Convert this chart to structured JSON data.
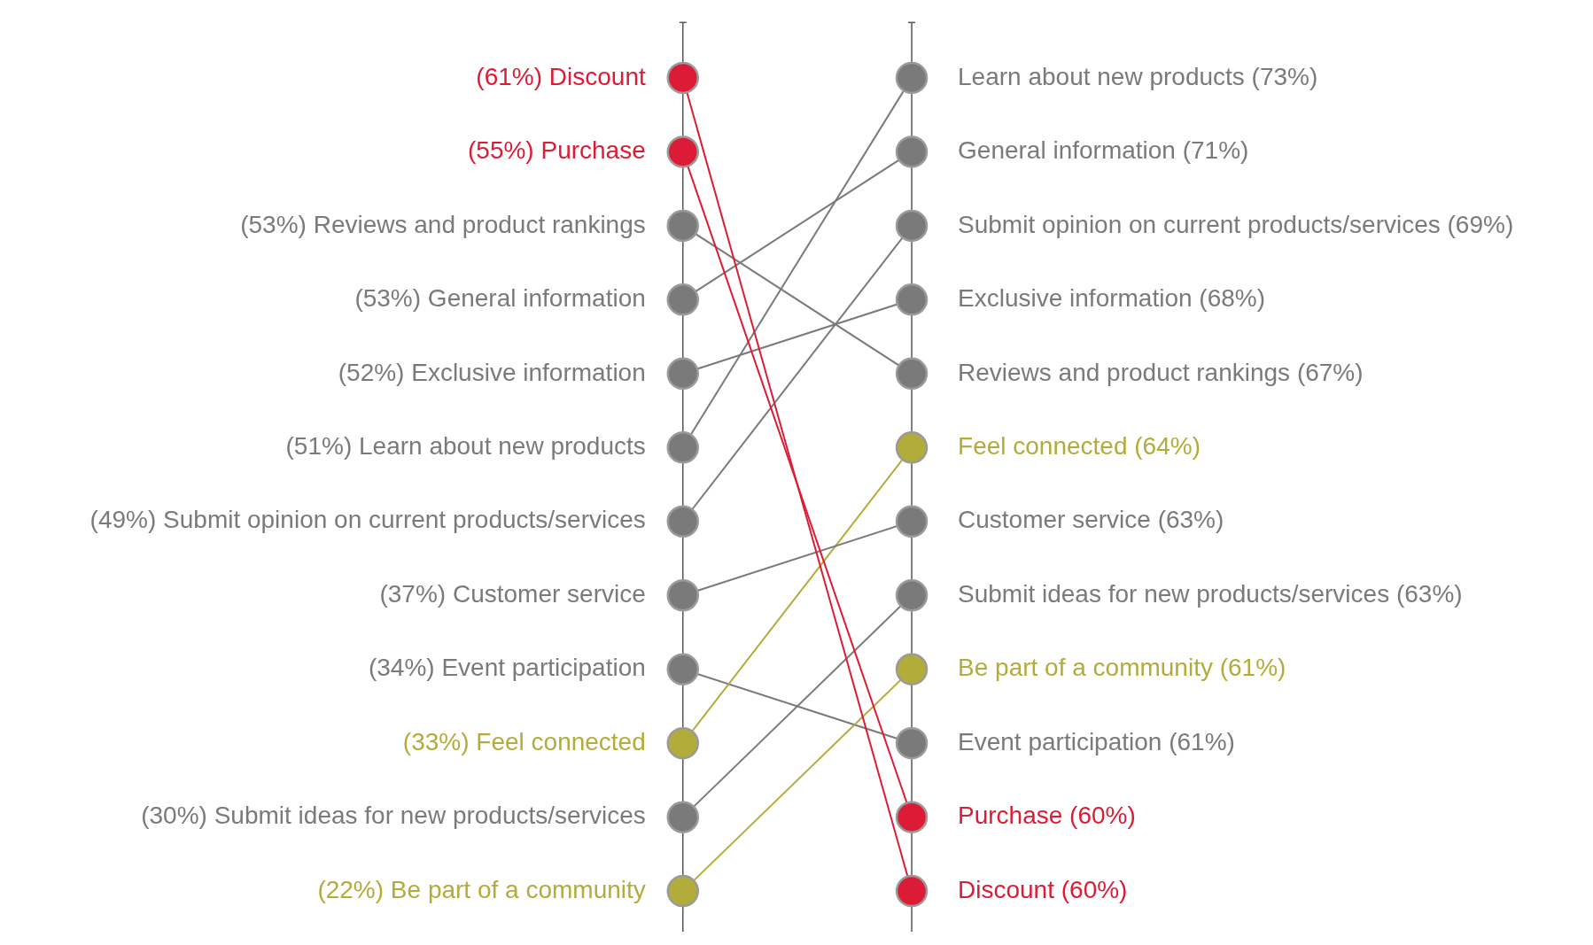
{
  "chart_data": {
    "type": "other",
    "categories": [
      "Purchase",
      "Discount",
      "Reviews and product rankings",
      "General information",
      "Exclusive information",
      "Learn about new products",
      "Submit opinion on current products/services",
      "Customer service",
      "Feel connected",
      "Submit ideas for new products/services",
      "Be part of a community",
      "Event participation"
    ],
    "colors": [
      "#dc1c36",
      "#dc1c36",
      "#7a7a7a",
      "#7a7a7a",
      "#7a7a7a",
      "#7a7a7a",
      "#7a7a7a",
      "#7a7a7a",
      "#b2ac3a",
      "#7a7a7a",
      "#b2ac3a",
      "#7a7a7a"
    ],
    "series": [
      {
        "values": [
          55,
          61,
          53,
          53,
          52,
          51,
          49,
          37,
          33,
          30,
          22,
          34
        ],
        "value_labels": [
          "(55%)",
          "(61%)",
          "(53%)",
          "(53%)",
          "(52%)",
          "(51%)",
          "(49%)",
          "(37%)",
          "(33%)",
          "(30%)",
          "(22%)",
          "(34%)"
        ]
      },
      {
        "values": [
          60,
          60,
          67,
          71,
          68,
          73,
          69,
          63,
          64,
          63,
          61,
          61
        ],
        "value_labels": [
          "(60%)",
          "(60%)",
          "(67%)",
          "(71%)",
          "(68%)",
          "(73%)",
          "(69%)",
          "(63%)",
          "(64%)",
          "(63%)",
          "(61%)",
          "(61%)"
        ]
      }
    ]
  }
}
